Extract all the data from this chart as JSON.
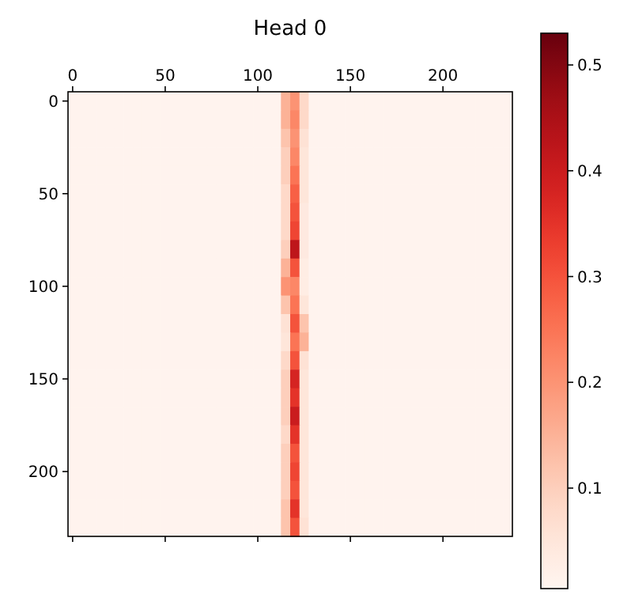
{
  "chart_data": {
    "type": "heatmap",
    "title": "Head 0",
    "categories": [
      "0",
      null,
      null,
      null,
      null,
      null,
      null,
      null,
      null,
      null,
      "50",
      null,
      null,
      null,
      null,
      null,
      null,
      null,
      null,
      null,
      "100",
      null,
      null,
      null,
      null,
      null,
      null,
      null,
      null,
      null,
      "150",
      null,
      null,
      null,
      null,
      null,
      null,
      null,
      null,
      null,
      "200",
      null,
      null,
      null,
      null,
      null,
      null,
      null
    ],
    "y_categories": [
      "0",
      null,
      null,
      null,
      null,
      "50",
      null,
      null,
      null,
      null,
      "100",
      null,
      null,
      null,
      null,
      "150",
      null,
      null,
      null,
      null,
      "200",
      null,
      null,
      null
    ],
    "clim": [
      0.005,
      0.53
    ],
    "cticks": [
      0.1,
      0.2,
      0.3,
      0.4,
      0.5
    ],
    "cells": [
      [
        0.01,
        0.01,
        0.01,
        0.01,
        0.01,
        0.01,
        0.01,
        0.01,
        0.01,
        0.01,
        0.01,
        0.01,
        0.01,
        0.01,
        0.01,
        0.01,
        0.01,
        0.01,
        0.01,
        0.01,
        0.01,
        0.01,
        0.01,
        0.15,
        0.2,
        0.08,
        0.01,
        0.01,
        0.01,
        0.01,
        0.01,
        0.01,
        0.01,
        0.01,
        0.01,
        0.01,
        0.01,
        0.01,
        0.01,
        0.01,
        0.01,
        0.01,
        0.01,
        0.01,
        0.01,
        0.01,
        0.01,
        0.01
      ],
      [
        0.01,
        0.01,
        0.01,
        0.01,
        0.01,
        0.01,
        0.01,
        0.01,
        0.01,
        0.01,
        0.01,
        0.01,
        0.01,
        0.01,
        0.01,
        0.01,
        0.01,
        0.01,
        0.01,
        0.01,
        0.01,
        0.01,
        0.01,
        0.15,
        0.22,
        0.08,
        0.01,
        0.01,
        0.01,
        0.01,
        0.01,
        0.01,
        0.01,
        0.01,
        0.01,
        0.01,
        0.01,
        0.01,
        0.01,
        0.01,
        0.01,
        0.01,
        0.01,
        0.01,
        0.01,
        0.01,
        0.01,
        0.01
      ],
      [
        0.01,
        0.01,
        0.01,
        0.01,
        0.01,
        0.01,
        0.01,
        0.01,
        0.01,
        0.01,
        0.01,
        0.01,
        0.01,
        0.01,
        0.01,
        0.01,
        0.01,
        0.01,
        0.01,
        0.01,
        0.01,
        0.01,
        0.01,
        0.12,
        0.2,
        0.06,
        0.01,
        0.01,
        0.01,
        0.01,
        0.01,
        0.01,
        0.01,
        0.01,
        0.01,
        0.01,
        0.01,
        0.01,
        0.01,
        0.01,
        0.01,
        0.01,
        0.01,
        0.01,
        0.01,
        0.01,
        0.01,
        0.01
      ],
      [
        0.01,
        0.01,
        0.01,
        0.01,
        0.01,
        0.01,
        0.01,
        0.01,
        0.01,
        0.01,
        0.01,
        0.01,
        0.01,
        0.01,
        0.01,
        0.01,
        0.01,
        0.01,
        0.01,
        0.01,
        0.01,
        0.01,
        0.01,
        0.1,
        0.22,
        0.05,
        0.01,
        0.01,
        0.01,
        0.01,
        0.01,
        0.01,
        0.01,
        0.01,
        0.01,
        0.01,
        0.01,
        0.01,
        0.01,
        0.01,
        0.01,
        0.01,
        0.01,
        0.01,
        0.01,
        0.01,
        0.01,
        0.01
      ],
      [
        0.01,
        0.01,
        0.01,
        0.01,
        0.01,
        0.01,
        0.01,
        0.01,
        0.01,
        0.01,
        0.01,
        0.01,
        0.01,
        0.01,
        0.01,
        0.01,
        0.01,
        0.01,
        0.01,
        0.01,
        0.01,
        0.01,
        0.01,
        0.1,
        0.25,
        0.05,
        0.01,
        0.01,
        0.01,
        0.01,
        0.01,
        0.01,
        0.01,
        0.01,
        0.01,
        0.01,
        0.01,
        0.01,
        0.01,
        0.01,
        0.01,
        0.01,
        0.01,
        0.01,
        0.01,
        0.01,
        0.01,
        0.01
      ],
      [
        0.01,
        0.01,
        0.01,
        0.01,
        0.01,
        0.01,
        0.01,
        0.01,
        0.01,
        0.01,
        0.01,
        0.01,
        0.01,
        0.01,
        0.01,
        0.01,
        0.01,
        0.01,
        0.01,
        0.01,
        0.01,
        0.01,
        0.01,
        0.08,
        0.28,
        0.05,
        0.01,
        0.01,
        0.01,
        0.01,
        0.01,
        0.01,
        0.01,
        0.01,
        0.01,
        0.01,
        0.01,
        0.01,
        0.01,
        0.01,
        0.01,
        0.01,
        0.01,
        0.01,
        0.01,
        0.01,
        0.01,
        0.01
      ],
      [
        0.01,
        0.01,
        0.01,
        0.01,
        0.01,
        0.01,
        0.01,
        0.01,
        0.01,
        0.01,
        0.01,
        0.01,
        0.01,
        0.01,
        0.01,
        0.01,
        0.01,
        0.01,
        0.01,
        0.01,
        0.01,
        0.01,
        0.01,
        0.08,
        0.3,
        0.04,
        0.01,
        0.01,
        0.01,
        0.01,
        0.01,
        0.01,
        0.01,
        0.01,
        0.01,
        0.01,
        0.01,
        0.01,
        0.01,
        0.01,
        0.01,
        0.01,
        0.01,
        0.01,
        0.01,
        0.01,
        0.01,
        0.01
      ],
      [
        0.01,
        0.01,
        0.01,
        0.01,
        0.01,
        0.01,
        0.01,
        0.01,
        0.01,
        0.01,
        0.01,
        0.01,
        0.01,
        0.01,
        0.01,
        0.01,
        0.01,
        0.01,
        0.01,
        0.01,
        0.01,
        0.01,
        0.01,
        0.08,
        0.32,
        0.04,
        0.01,
        0.01,
        0.01,
        0.01,
        0.01,
        0.01,
        0.01,
        0.01,
        0.01,
        0.01,
        0.01,
        0.01,
        0.01,
        0.01,
        0.01,
        0.01,
        0.01,
        0.01,
        0.01,
        0.01,
        0.01,
        0.01
      ],
      [
        0.01,
        0.01,
        0.01,
        0.01,
        0.01,
        0.01,
        0.01,
        0.01,
        0.01,
        0.01,
        0.01,
        0.01,
        0.01,
        0.01,
        0.01,
        0.01,
        0.01,
        0.01,
        0.01,
        0.01,
        0.01,
        0.01,
        0.01,
        0.1,
        0.42,
        0.04,
        0.01,
        0.01,
        0.01,
        0.01,
        0.01,
        0.01,
        0.01,
        0.01,
        0.01,
        0.01,
        0.01,
        0.01,
        0.01,
        0.01,
        0.01,
        0.01,
        0.01,
        0.01,
        0.01,
        0.01,
        0.01,
        0.01
      ],
      [
        0.01,
        0.01,
        0.01,
        0.01,
        0.01,
        0.01,
        0.01,
        0.01,
        0.01,
        0.01,
        0.01,
        0.01,
        0.01,
        0.01,
        0.01,
        0.01,
        0.01,
        0.01,
        0.01,
        0.01,
        0.01,
        0.01,
        0.01,
        0.15,
        0.3,
        0.03,
        0.01,
        0.01,
        0.01,
        0.01,
        0.01,
        0.01,
        0.01,
        0.01,
        0.01,
        0.01,
        0.01,
        0.01,
        0.01,
        0.01,
        0.01,
        0.01,
        0.01,
        0.01,
        0.01,
        0.01,
        0.01,
        0.01
      ],
      [
        0.01,
        0.01,
        0.01,
        0.01,
        0.01,
        0.01,
        0.01,
        0.01,
        0.01,
        0.01,
        0.01,
        0.01,
        0.01,
        0.01,
        0.01,
        0.01,
        0.01,
        0.01,
        0.01,
        0.01,
        0.01,
        0.01,
        0.01,
        0.2,
        0.22,
        0.03,
        0.01,
        0.01,
        0.01,
        0.01,
        0.01,
        0.01,
        0.01,
        0.01,
        0.01,
        0.01,
        0.01,
        0.01,
        0.01,
        0.01,
        0.01,
        0.01,
        0.01,
        0.01,
        0.01,
        0.01,
        0.01,
        0.01
      ],
      [
        0.01,
        0.01,
        0.01,
        0.01,
        0.01,
        0.01,
        0.01,
        0.01,
        0.01,
        0.01,
        0.01,
        0.01,
        0.01,
        0.01,
        0.01,
        0.01,
        0.01,
        0.01,
        0.01,
        0.01,
        0.01,
        0.01,
        0.01,
        0.12,
        0.25,
        0.05,
        0.01,
        0.01,
        0.01,
        0.01,
        0.01,
        0.01,
        0.01,
        0.01,
        0.01,
        0.01,
        0.01,
        0.01,
        0.01,
        0.01,
        0.01,
        0.01,
        0.01,
        0.01,
        0.01,
        0.01,
        0.01,
        0.01
      ],
      [
        0.01,
        0.01,
        0.01,
        0.01,
        0.01,
        0.01,
        0.01,
        0.01,
        0.01,
        0.01,
        0.01,
        0.01,
        0.01,
        0.01,
        0.01,
        0.01,
        0.01,
        0.01,
        0.01,
        0.01,
        0.01,
        0.01,
        0.01,
        0.06,
        0.3,
        0.12,
        0.01,
        0.01,
        0.01,
        0.01,
        0.01,
        0.01,
        0.01,
        0.01,
        0.01,
        0.01,
        0.01,
        0.01,
        0.01,
        0.01,
        0.01,
        0.01,
        0.01,
        0.01,
        0.01,
        0.01,
        0.01,
        0.01
      ],
      [
        0.01,
        0.01,
        0.01,
        0.01,
        0.01,
        0.01,
        0.01,
        0.01,
        0.01,
        0.01,
        0.01,
        0.01,
        0.01,
        0.01,
        0.01,
        0.01,
        0.01,
        0.01,
        0.01,
        0.01,
        0.01,
        0.01,
        0.01,
        0.05,
        0.25,
        0.15,
        0.01,
        0.01,
        0.01,
        0.01,
        0.01,
        0.01,
        0.01,
        0.01,
        0.01,
        0.01,
        0.01,
        0.01,
        0.01,
        0.01,
        0.01,
        0.01,
        0.01,
        0.01,
        0.01,
        0.01,
        0.01,
        0.01
      ],
      [
        0.01,
        0.01,
        0.01,
        0.01,
        0.01,
        0.01,
        0.01,
        0.01,
        0.01,
        0.01,
        0.01,
        0.01,
        0.01,
        0.01,
        0.01,
        0.01,
        0.01,
        0.01,
        0.01,
        0.01,
        0.01,
        0.01,
        0.01,
        0.08,
        0.3,
        0.06,
        0.01,
        0.01,
        0.01,
        0.01,
        0.01,
        0.01,
        0.01,
        0.01,
        0.01,
        0.01,
        0.01,
        0.01,
        0.01,
        0.01,
        0.01,
        0.01,
        0.01,
        0.01,
        0.01,
        0.01,
        0.01,
        0.01
      ],
      [
        0.01,
        0.01,
        0.01,
        0.01,
        0.01,
        0.01,
        0.01,
        0.01,
        0.01,
        0.01,
        0.01,
        0.01,
        0.01,
        0.01,
        0.01,
        0.01,
        0.01,
        0.01,
        0.01,
        0.01,
        0.01,
        0.01,
        0.01,
        0.1,
        0.38,
        0.05,
        0.01,
        0.01,
        0.01,
        0.01,
        0.01,
        0.01,
        0.01,
        0.01,
        0.01,
        0.01,
        0.01,
        0.01,
        0.01,
        0.01,
        0.01,
        0.01,
        0.01,
        0.01,
        0.01,
        0.01,
        0.01,
        0.01
      ],
      [
        0.01,
        0.01,
        0.01,
        0.01,
        0.01,
        0.01,
        0.01,
        0.01,
        0.01,
        0.01,
        0.01,
        0.01,
        0.01,
        0.01,
        0.01,
        0.01,
        0.01,
        0.01,
        0.01,
        0.01,
        0.01,
        0.01,
        0.01,
        0.1,
        0.35,
        0.05,
        0.01,
        0.01,
        0.01,
        0.01,
        0.01,
        0.01,
        0.01,
        0.01,
        0.01,
        0.01,
        0.01,
        0.01,
        0.01,
        0.01,
        0.01,
        0.01,
        0.01,
        0.01,
        0.01,
        0.01,
        0.01,
        0.01
      ],
      [
        0.01,
        0.01,
        0.01,
        0.01,
        0.01,
        0.01,
        0.01,
        0.01,
        0.01,
        0.01,
        0.01,
        0.01,
        0.01,
        0.01,
        0.01,
        0.01,
        0.01,
        0.01,
        0.01,
        0.01,
        0.01,
        0.01,
        0.01,
        0.1,
        0.4,
        0.05,
        0.01,
        0.01,
        0.01,
        0.01,
        0.01,
        0.01,
        0.01,
        0.01,
        0.01,
        0.01,
        0.01,
        0.01,
        0.01,
        0.01,
        0.01,
        0.01,
        0.01,
        0.01,
        0.01,
        0.01,
        0.01,
        0.01
      ],
      [
        0.01,
        0.01,
        0.01,
        0.01,
        0.01,
        0.01,
        0.01,
        0.01,
        0.01,
        0.01,
        0.01,
        0.01,
        0.01,
        0.01,
        0.01,
        0.01,
        0.01,
        0.01,
        0.01,
        0.01,
        0.01,
        0.01,
        0.01,
        0.08,
        0.35,
        0.05,
        0.01,
        0.01,
        0.01,
        0.01,
        0.01,
        0.01,
        0.01,
        0.01,
        0.01,
        0.01,
        0.01,
        0.01,
        0.01,
        0.01,
        0.01,
        0.01,
        0.01,
        0.01,
        0.01,
        0.01,
        0.01,
        0.01
      ],
      [
        0.01,
        0.01,
        0.01,
        0.01,
        0.01,
        0.01,
        0.01,
        0.01,
        0.01,
        0.01,
        0.01,
        0.01,
        0.01,
        0.01,
        0.01,
        0.01,
        0.01,
        0.01,
        0.01,
        0.01,
        0.01,
        0.01,
        0.01,
        0.1,
        0.3,
        0.05,
        0.01,
        0.01,
        0.01,
        0.01,
        0.01,
        0.01,
        0.01,
        0.01,
        0.01,
        0.01,
        0.01,
        0.01,
        0.01,
        0.01,
        0.01,
        0.01,
        0.01,
        0.01,
        0.01,
        0.01,
        0.01,
        0.01
      ],
      [
        0.01,
        0.01,
        0.01,
        0.01,
        0.01,
        0.01,
        0.01,
        0.01,
        0.01,
        0.01,
        0.01,
        0.01,
        0.01,
        0.01,
        0.01,
        0.01,
        0.01,
        0.01,
        0.01,
        0.01,
        0.01,
        0.01,
        0.01,
        0.1,
        0.32,
        0.05,
        0.01,
        0.01,
        0.01,
        0.01,
        0.01,
        0.01,
        0.01,
        0.01,
        0.01,
        0.01,
        0.01,
        0.01,
        0.01,
        0.01,
        0.01,
        0.01,
        0.01,
        0.01,
        0.01,
        0.01,
        0.01,
        0.01
      ],
      [
        0.01,
        0.01,
        0.01,
        0.01,
        0.01,
        0.01,
        0.01,
        0.01,
        0.01,
        0.01,
        0.01,
        0.01,
        0.01,
        0.01,
        0.01,
        0.01,
        0.01,
        0.01,
        0.01,
        0.01,
        0.01,
        0.01,
        0.01,
        0.1,
        0.3,
        0.05,
        0.01,
        0.01,
        0.01,
        0.01,
        0.01,
        0.01,
        0.01,
        0.01,
        0.01,
        0.01,
        0.01,
        0.01,
        0.01,
        0.01,
        0.01,
        0.01,
        0.01,
        0.01,
        0.01,
        0.01,
        0.01,
        0.01
      ],
      [
        0.01,
        0.01,
        0.01,
        0.01,
        0.01,
        0.01,
        0.01,
        0.01,
        0.01,
        0.01,
        0.01,
        0.01,
        0.01,
        0.01,
        0.01,
        0.01,
        0.01,
        0.01,
        0.01,
        0.01,
        0.01,
        0.01,
        0.01,
        0.12,
        0.35,
        0.05,
        0.01,
        0.01,
        0.01,
        0.01,
        0.01,
        0.01,
        0.01,
        0.01,
        0.01,
        0.01,
        0.01,
        0.01,
        0.01,
        0.01,
        0.01,
        0.01,
        0.01,
        0.01,
        0.01,
        0.01,
        0.01,
        0.01
      ],
      [
        0.01,
        0.01,
        0.01,
        0.01,
        0.01,
        0.01,
        0.01,
        0.01,
        0.01,
        0.01,
        0.01,
        0.01,
        0.01,
        0.01,
        0.01,
        0.01,
        0.01,
        0.01,
        0.01,
        0.01,
        0.01,
        0.01,
        0.01,
        0.12,
        0.3,
        0.06,
        0.01,
        0.01,
        0.01,
        0.01,
        0.01,
        0.01,
        0.01,
        0.01,
        0.01,
        0.01,
        0.01,
        0.01,
        0.01,
        0.01,
        0.01,
        0.01,
        0.01,
        0.01,
        0.01,
        0.01,
        0.01,
        0.01
      ]
    ]
  }
}
